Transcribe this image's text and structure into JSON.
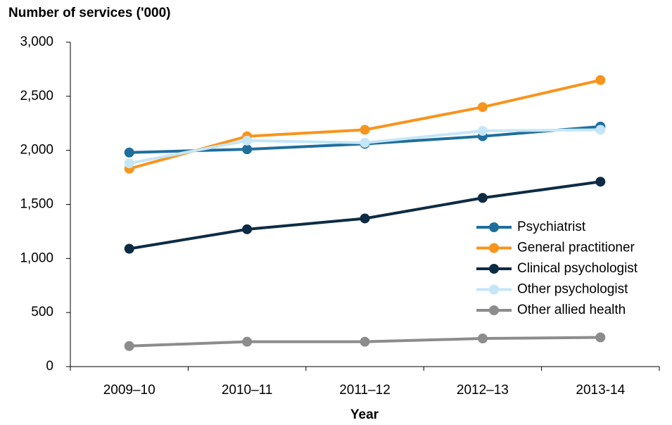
{
  "chart_data": {
    "type": "line",
    "y_label": "Number of services ('000)",
    "x_label": "Year",
    "categories": [
      "2009–10",
      "2010–11",
      "2011–12",
      "2012–13",
      "2013-14"
    ],
    "series": [
      {
        "name": "Psychiatrist",
        "color": "#1f6e9c",
        "values": [
          1980,
          2010,
          2060,
          2130,
          2220
        ]
      },
      {
        "name": "General practitioner",
        "color": "#f7941d",
        "values": [
          1830,
          2130,
          2190,
          2400,
          2650
        ]
      },
      {
        "name": "Clinical psychologist",
        "color": "#0d2c44",
        "values": [
          1090,
          1270,
          1370,
          1560,
          1710
        ]
      },
      {
        "name": "Other psychologist",
        "color": "#c5e6f7",
        "values": [
          1880,
          2090,
          2070,
          2180,
          2190
        ]
      },
      {
        "name": "Other allied health",
        "color": "#8c8c8c",
        "values": [
          190,
          230,
          230,
          260,
          270
        ]
      }
    ],
    "ylim": [
      0,
      3000
    ],
    "yticks": [
      0,
      500,
      {
        "value": 1000,
        "label": "1,000"
      },
      {
        "value": 1500,
        "label": "1,500"
      },
      {
        "value": 2000,
        "label": "2,000"
      },
      {
        "value": 2500,
        "label": "2,500"
      },
      {
        "value": 3000,
        "label": "3,000"
      }
    ],
    "legend": "right"
  }
}
